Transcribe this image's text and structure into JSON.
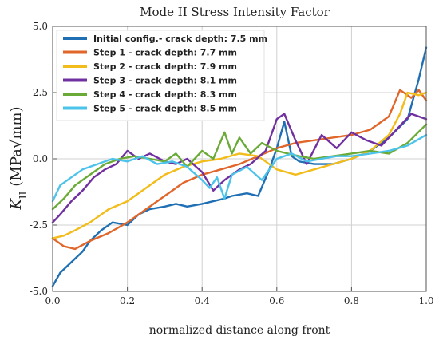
{
  "chart_data": {
    "type": "line",
    "title": "Mode II Stress Intensity Factor",
    "xlabel": "normalized distance along front",
    "ylabel": "K_II (MPa√mm)",
    "xlim": [
      0.0,
      1.0
    ],
    "ylim": [
      -5.0,
      5.0
    ],
    "xticks": [
      "0.0",
      "0.2",
      "0.4",
      "0.6",
      "0.8",
      "1.0"
    ],
    "yticks": [
      "5.0",
      "2.5",
      "0.0",
      "-2.5",
      "-5.0"
    ],
    "grid": true,
    "legend_position": "top-left",
    "series": [
      {
        "name": "Initial config.- crack depth: 7.5 mm",
        "color": "#1f6fb4",
        "x": [
          0.0,
          0.02,
          0.05,
          0.08,
          0.1,
          0.13,
          0.16,
          0.2,
          0.23,
          0.26,
          0.3,
          0.33,
          0.36,
          0.4,
          0.43,
          0.46,
          0.48,
          0.52,
          0.55,
          0.58,
          0.6,
          0.62,
          0.64,
          0.66,
          0.7,
          0.75,
          0.8,
          0.85,
          0.9,
          0.95,
          0.98,
          1.0
        ],
        "y": [
          -4.8,
          -4.3,
          -3.9,
          -3.5,
          -3.1,
          -2.7,
          -2.4,
          -2.5,
          -2.1,
          -1.9,
          -1.8,
          -1.7,
          -1.8,
          -1.7,
          -1.6,
          -1.5,
          -1.4,
          -1.3,
          -1.4,
          -0.4,
          0.4,
          1.4,
          0.1,
          -0.1,
          -0.2,
          -0.2,
          0.0,
          0.3,
          0.8,
          1.5,
          3.0,
          4.2
        ]
      },
      {
        "name": "Step 1 - crack depth: 7.7 mm",
        "color": "#e0662a",
        "x": [
          0.0,
          0.03,
          0.06,
          0.1,
          0.15,
          0.2,
          0.25,
          0.3,
          0.35,
          0.4,
          0.45,
          0.5,
          0.55,
          0.6,
          0.65,
          0.7,
          0.75,
          0.8,
          0.85,
          0.9,
          0.93,
          0.96,
          0.98,
          1.0
        ],
        "y": [
          -3.0,
          -3.3,
          -3.4,
          -3.1,
          -2.8,
          -2.4,
          -1.9,
          -1.4,
          -0.9,
          -0.6,
          -0.4,
          -0.2,
          0.1,
          0.4,
          0.6,
          0.7,
          0.8,
          0.9,
          1.1,
          1.6,
          2.6,
          2.3,
          2.6,
          2.2
        ]
      },
      {
        "name": "Step 2 - crack depth: 7.9 mm",
        "color": "#f2bc1a",
        "x": [
          0.0,
          0.03,
          0.06,
          0.1,
          0.15,
          0.2,
          0.25,
          0.3,
          0.35,
          0.4,
          0.45,
          0.5,
          0.55,
          0.6,
          0.65,
          0.7,
          0.75,
          0.8,
          0.85,
          0.9,
          0.93,
          0.95,
          0.98,
          1.0
        ],
        "y": [
          -3.0,
          -2.9,
          -2.7,
          -2.4,
          -1.9,
          -1.6,
          -1.1,
          -0.6,
          -0.3,
          -0.1,
          0.0,
          0.2,
          0.1,
          -0.4,
          -0.6,
          -0.4,
          -0.2,
          0.0,
          0.3,
          0.9,
          1.7,
          2.5,
          2.4,
          2.5
        ]
      },
      {
        "name": "Step 3 - crack depth: 8.1 mm",
        "color": "#7030a0",
        "x": [
          0.0,
          0.02,
          0.05,
          0.08,
          0.11,
          0.14,
          0.17,
          0.2,
          0.23,
          0.26,
          0.3,
          0.33,
          0.36,
          0.4,
          0.43,
          0.46,
          0.5,
          0.53,
          0.57,
          0.6,
          0.62,
          0.65,
          0.68,
          0.72,
          0.76,
          0.8,
          0.84,
          0.88,
          0.92,
          0.96,
          1.0
        ],
        "y": [
          -2.4,
          -2.1,
          -1.6,
          -1.2,
          -0.7,
          -0.4,
          -0.2,
          0.3,
          0.0,
          0.2,
          -0.1,
          -0.2,
          0.0,
          -0.5,
          -1.2,
          -0.8,
          -0.4,
          -0.2,
          0.3,
          1.5,
          1.7,
          0.7,
          -0.2,
          0.9,
          0.4,
          1.0,
          0.7,
          0.5,
          1.1,
          1.7,
          1.5
        ]
      },
      {
        "name": "Step 4 - crack depth: 8.3 mm",
        "color": "#6aab38",
        "x": [
          0.0,
          0.03,
          0.06,
          0.1,
          0.14,
          0.18,
          0.22,
          0.26,
          0.3,
          0.33,
          0.36,
          0.4,
          0.43,
          0.46,
          0.48,
          0.5,
          0.53,
          0.56,
          0.6,
          0.63,
          0.66,
          0.7,
          0.75,
          0.8,
          0.85,
          0.9,
          0.95,
          1.0
        ],
        "y": [
          -1.9,
          -1.5,
          -1.0,
          -0.6,
          -0.2,
          0.0,
          0.1,
          0.0,
          -0.1,
          0.2,
          -0.3,
          0.3,
          0.0,
          1.0,
          0.2,
          0.8,
          0.2,
          0.6,
          0.3,
          0.2,
          0.1,
          0.0,
          0.1,
          0.2,
          0.3,
          0.2,
          0.6,
          1.3
        ]
      },
      {
        "name": "Step 5 - crack depth: 8.5 mm",
        "color": "#4cc3ea",
        "x": [
          0.0,
          0.02,
          0.05,
          0.08,
          0.12,
          0.16,
          0.2,
          0.24,
          0.28,
          0.32,
          0.36,
          0.4,
          0.42,
          0.44,
          0.46,
          0.48,
          0.52,
          0.56,
          0.6,
          0.64,
          0.68,
          0.72,
          0.76,
          0.8,
          0.85,
          0.9,
          0.95,
          1.0
        ],
        "y": [
          -1.6,
          -1.0,
          -0.7,
          -0.4,
          -0.2,
          0.0,
          -0.1,
          0.1,
          -0.2,
          -0.1,
          -0.3,
          -0.8,
          -1.1,
          -0.7,
          -1.5,
          -0.6,
          -0.3,
          -0.8,
          0.0,
          0.2,
          -0.1,
          0.0,
          0.1,
          0.1,
          0.2,
          0.3,
          0.5,
          0.9
        ]
      }
    ]
  }
}
